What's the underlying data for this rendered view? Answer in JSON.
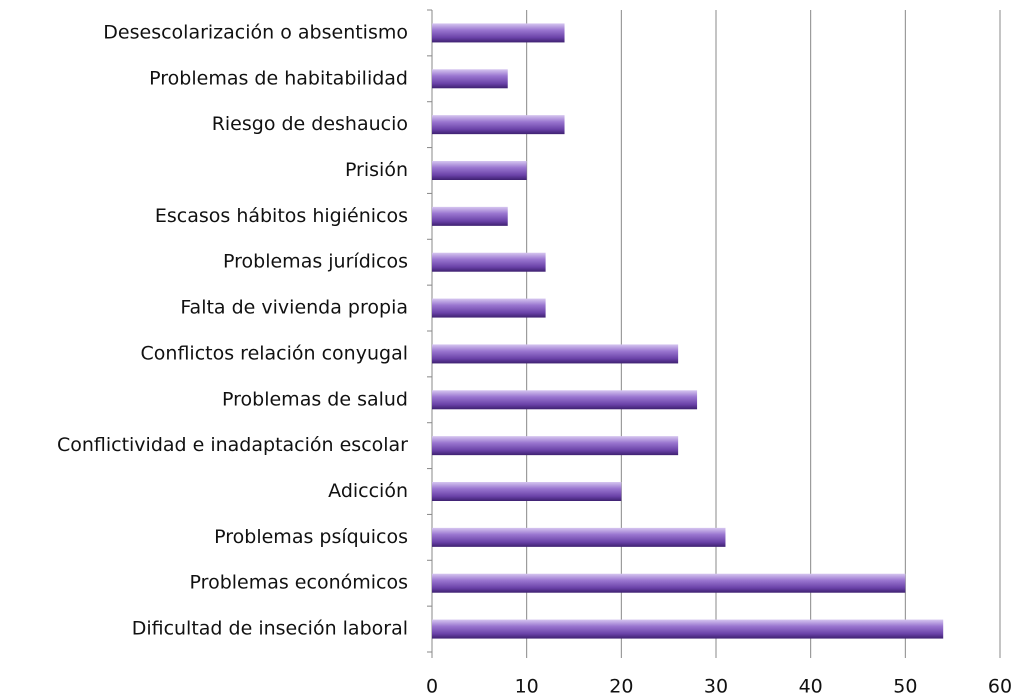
{
  "chart_data": {
    "type": "hbar",
    "categories": [
      "Desescolarización o absentismo",
      "Problemas de habitabilidad",
      "Riesgo de deshaucio",
      "Prisión",
      "Escasos hábitos higiénicos",
      "Problemas jurídicos",
      "Falta de vivienda propia",
      "Conflictos relación conyugal",
      "Problemas de salud",
      "Conflictividad e inadaptación escolar",
      "Adicción",
      "Problemas psíquicos",
      "Problemas económicos",
      "Dificultad de inseción laboral"
    ],
    "values": [
      14,
      8,
      14,
      10,
      8,
      12,
      12,
      26,
      28,
      26,
      20,
      31,
      50,
      54
    ],
    "color": "#8a63c4",
    "xlim": [
      0,
      60
    ],
    "xticks": [
      0,
      10,
      20,
      30,
      40,
      50,
      60
    ],
    "grid": true
  }
}
